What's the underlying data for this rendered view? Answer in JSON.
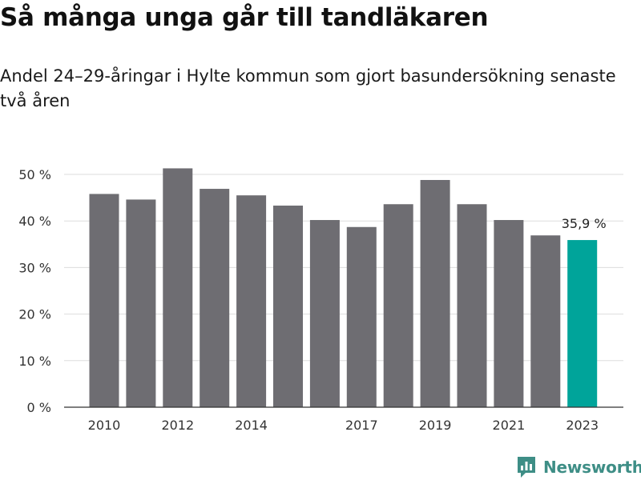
{
  "title": "Så många unga går till tandläkaren",
  "subtitle": "Andel 24–29-åringar i Hylte kommun som gjort basundersökning senaste två åren",
  "brand": {
    "name": "Newsworthy",
    "icon": "bar-chart-logo-icon",
    "color": "#3e8e86"
  },
  "chart_data": {
    "type": "bar",
    "title": "Så många unga går till tandläkaren",
    "subtitle": "Andel 24–29-åringar i Hylte kommun som gjort basundersökning senaste två åren",
    "categories": [
      "2010",
      "2011",
      "2012",
      "2013",
      "2014",
      "2015",
      "2016",
      "2017",
      "2018",
      "2019",
      "2020",
      "2021",
      "2022",
      "2023"
    ],
    "values": [
      45.8,
      44.6,
      51.3,
      46.9,
      45.5,
      43.3,
      40.2,
      38.7,
      43.6,
      48.8,
      43.6,
      40.2,
      36.9,
      35.9
    ],
    "x_tick_labels": [
      "2010",
      "2012",
      "2014",
      "2017",
      "2019",
      "2021",
      "2023"
    ],
    "y_ticks": [
      0,
      10,
      20,
      30,
      40,
      50
    ],
    "y_tick_labels": [
      "0 %",
      "10 %",
      "20 %",
      "30 %",
      "40 %",
      "50 %"
    ],
    "ylim": [
      0,
      53
    ],
    "xlabel": "",
    "ylabel": "",
    "grid": true,
    "colors": {
      "bar": "#6e6d72",
      "highlight": "#00a49a",
      "grid": "#dddddd",
      "axis": "#333333"
    },
    "highlight_index": 13,
    "annotations": [
      {
        "category": "2023",
        "text": "35,9 %"
      }
    ]
  }
}
